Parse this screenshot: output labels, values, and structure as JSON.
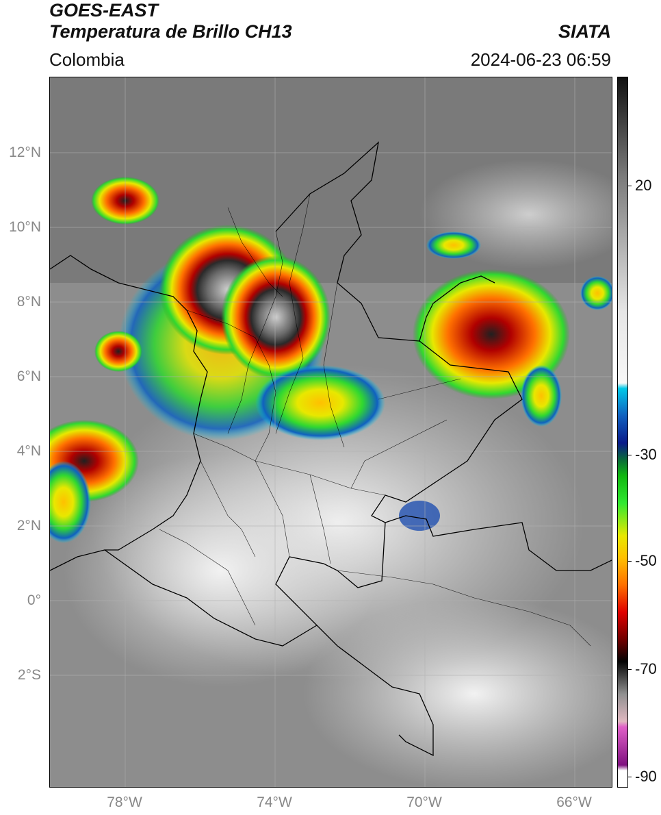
{
  "header": {
    "title_line1": "GOES-EAST",
    "title_line2": "Temperatura de Brillo CH13",
    "region": "Colombia",
    "source": "SIATA",
    "datetime": "2024-06-23 06:59"
  },
  "map": {
    "lat_labels": [
      "12°N",
      "10°N",
      "8°N",
      "6°N",
      "4°N",
      "2°N",
      "0°",
      "2°S"
    ],
    "lon_labels": [
      "78°W",
      "74°W",
      "70°W",
      "66°W"
    ],
    "extent": {
      "lon_min": -80.0,
      "lon_max": -65.0,
      "lat_min": -5.0,
      "lat_max": 14.0
    }
  },
  "colorbar": {
    "tick_labels": [
      "20",
      "-30",
      "-50",
      "-70",
      "-90"
    ],
    "range": [
      -92,
      38
    ],
    "stops": [
      {
        "v": 38,
        "c": "#111111"
      },
      {
        "v": 20,
        "c": "#7a7a7a"
      },
      {
        "v": -5,
        "c": "#e6e6e6"
      },
      {
        "v": -18,
        "c": "#f7f7f7"
      },
      {
        "v": -19,
        "c": "#00c8e8"
      },
      {
        "v": -24,
        "c": "#1060c0"
      },
      {
        "v": -29,
        "c": "#0a1a8a"
      },
      {
        "v": -32,
        "c": "#0a6a3a"
      },
      {
        "v": -35,
        "c": "#10b810"
      },
      {
        "v": -40,
        "c": "#30e830"
      },
      {
        "v": -46,
        "c": "#e8e800"
      },
      {
        "v": -50,
        "c": "#ffc000"
      },
      {
        "v": -55,
        "c": "#ff7000"
      },
      {
        "v": -60,
        "c": "#e00000"
      },
      {
        "v": -65,
        "c": "#700000"
      },
      {
        "v": -69,
        "c": "#050505"
      },
      {
        "v": -75,
        "c": "#909090"
      },
      {
        "v": -80,
        "c": "#e0b8c0"
      },
      {
        "v": -81,
        "c": "#e060c8"
      },
      {
        "v": -88,
        "c": "#801080"
      },
      {
        "v": -89,
        "c": "#ffffff"
      },
      {
        "v": -92,
        "c": "#ffffff"
      }
    ]
  }
}
